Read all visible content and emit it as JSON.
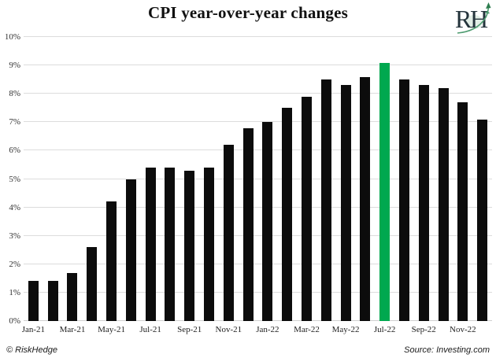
{
  "header": {
    "title": "CPI year-over-year changes",
    "logo": {
      "letters": "RH",
      "icon": "growth-arrow"
    }
  },
  "footer": {
    "left": "© RiskHedge",
    "right": "Source: Investing.com"
  },
  "colors": {
    "bar": "#0c0c0c",
    "highlight": "#00a84f",
    "gridline": "#dcdcdc",
    "axis_line": "#d0d0d0",
    "logo_letters": "#25343c",
    "logo_green": "#4d9b6f"
  },
  "chart_data": {
    "type": "bar",
    "title": "CPI year-over-year changes",
    "xlabel": "",
    "ylabel": "",
    "ylim": [
      0,
      10
    ],
    "y_ticks": [
      "0%",
      "1%",
      "2%",
      "3%",
      "4%",
      "5%",
      "6%",
      "7%",
      "8%",
      "9%",
      "10%"
    ],
    "grid": "horizontal",
    "legend": "none",
    "x_label_every": 2,
    "categories": [
      "Jan-21",
      "Feb-21",
      "Mar-21",
      "Apr-21",
      "May-21",
      "Jun-21",
      "Jul-21",
      "Aug-21",
      "Sep-21",
      "Oct-21",
      "Nov-21",
      "Dec-21",
      "Jan-22",
      "Feb-22",
      "Mar-22",
      "Apr-22",
      "May-22",
      "Jun-22",
      "Jul-22",
      "Aug-22",
      "Sep-22",
      "Oct-22",
      "Nov-22",
      "Dec-22"
    ],
    "values": [
      1.4,
      1.4,
      1.7,
      2.6,
      4.2,
      5.0,
      5.4,
      5.4,
      5.3,
      5.4,
      6.2,
      6.8,
      7.0,
      7.5,
      7.9,
      8.5,
      8.3,
      8.6,
      9.1,
      8.5,
      8.3,
      8.2,
      7.7,
      7.1
    ],
    "highlighted_category": "Jul-22",
    "highlighted_index": 18,
    "highlighted_value": 9.1
  }
}
